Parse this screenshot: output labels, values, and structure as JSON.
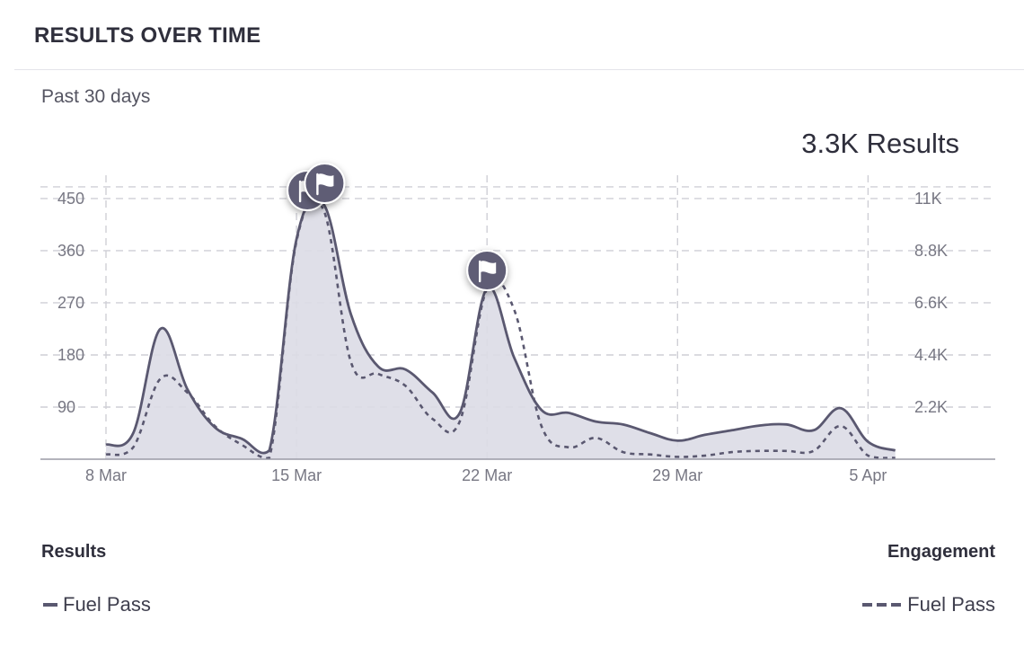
{
  "header": {
    "title": "RESULTS OVER TIME"
  },
  "period_label": "Past 30 days",
  "total_label": "3.3K Results",
  "colors": {
    "line": "#5a5870",
    "area": "#dcdbe6",
    "grid": "#cfcfd6",
    "marker": "#5f5d74"
  },
  "legend": {
    "left_heading": "Results",
    "right_heading": "Engagement",
    "left_item": "Fuel Pass",
    "right_item": "Fuel Pass"
  },
  "chart_data": {
    "type": "area",
    "x_ticks": [
      "8 Mar",
      "15 Mar",
      "22 Mar",
      "29 Mar",
      "5 Apr"
    ],
    "y_left_ticks": [
      "90",
      "180",
      "270",
      "360",
      "450"
    ],
    "y_left_lim": [
      0,
      500
    ],
    "y_right_ticks": [
      "2.2K",
      "4.4K",
      "6.6K",
      "8.8K",
      "11K"
    ],
    "y_right_lim": [
      0,
      12200
    ],
    "grid": true,
    "series": [
      {
        "name": "Results",
        "style": "solid-area",
        "axis": "left",
        "x": [
          "8 Mar",
          "9 Mar",
          "10 Mar",
          "11 Mar",
          "12 Mar",
          "13 Mar",
          "14 Mar",
          "15 Mar",
          "16 Mar",
          "17 Mar",
          "18 Mar",
          "19 Mar",
          "20 Mar",
          "21 Mar",
          "22 Mar",
          "23 Mar",
          "24 Mar",
          "25 Mar",
          "26 Mar",
          "27 Mar",
          "28 Mar",
          "29 Mar",
          "30 Mar",
          "31 Mar",
          "1 Apr",
          "2 Apr",
          "3 Apr",
          "4 Apr",
          "5 Apr",
          "6 Apr"
        ],
        "values": [
          25,
          45,
          225,
          120,
          55,
          35,
          15,
          380,
          440,
          250,
          160,
          155,
          115,
          80,
          295,
          175,
          85,
          80,
          65,
          60,
          45,
          32,
          42,
          50,
          58,
          60,
          50,
          88,
          30,
          15
        ]
      },
      {
        "name": "Engagement",
        "style": "dashed",
        "axis": "right",
        "x": [
          "8 Mar",
          "9 Mar",
          "10 Mar",
          "11 Mar",
          "12 Mar",
          "13 Mar",
          "14 Mar",
          "15 Mar",
          "16 Mar",
          "17 Mar",
          "18 Mar",
          "19 Mar",
          "20 Mar",
          "21 Mar",
          "22 Mar",
          "23 Mar",
          "24 Mar",
          "25 Mar",
          "26 Mar",
          "27 Mar",
          "28 Mar",
          "29 Mar",
          "30 Mar",
          "31 Mar",
          "1 Apr",
          "2 Apr",
          "3 Apr",
          "4 Apr",
          "5 Apr",
          "6 Apr"
        ],
        "values": [
          200,
          500,
          3400,
          2800,
          1400,
          600,
          50,
          9200,
          10500,
          4100,
          3600,
          3100,
          1700,
          1600,
          7200,
          6300,
          1400,
          500,
          900,
          300,
          200,
          100,
          150,
          300,
          350,
          350,
          350,
          1400,
          150,
          50
        ]
      }
    ],
    "annotations": [
      {
        "type": "flag",
        "x": "15 Mar"
      },
      {
        "type": "flag",
        "x": "16 Mar"
      },
      {
        "type": "flag",
        "x": "22 Mar"
      }
    ]
  }
}
